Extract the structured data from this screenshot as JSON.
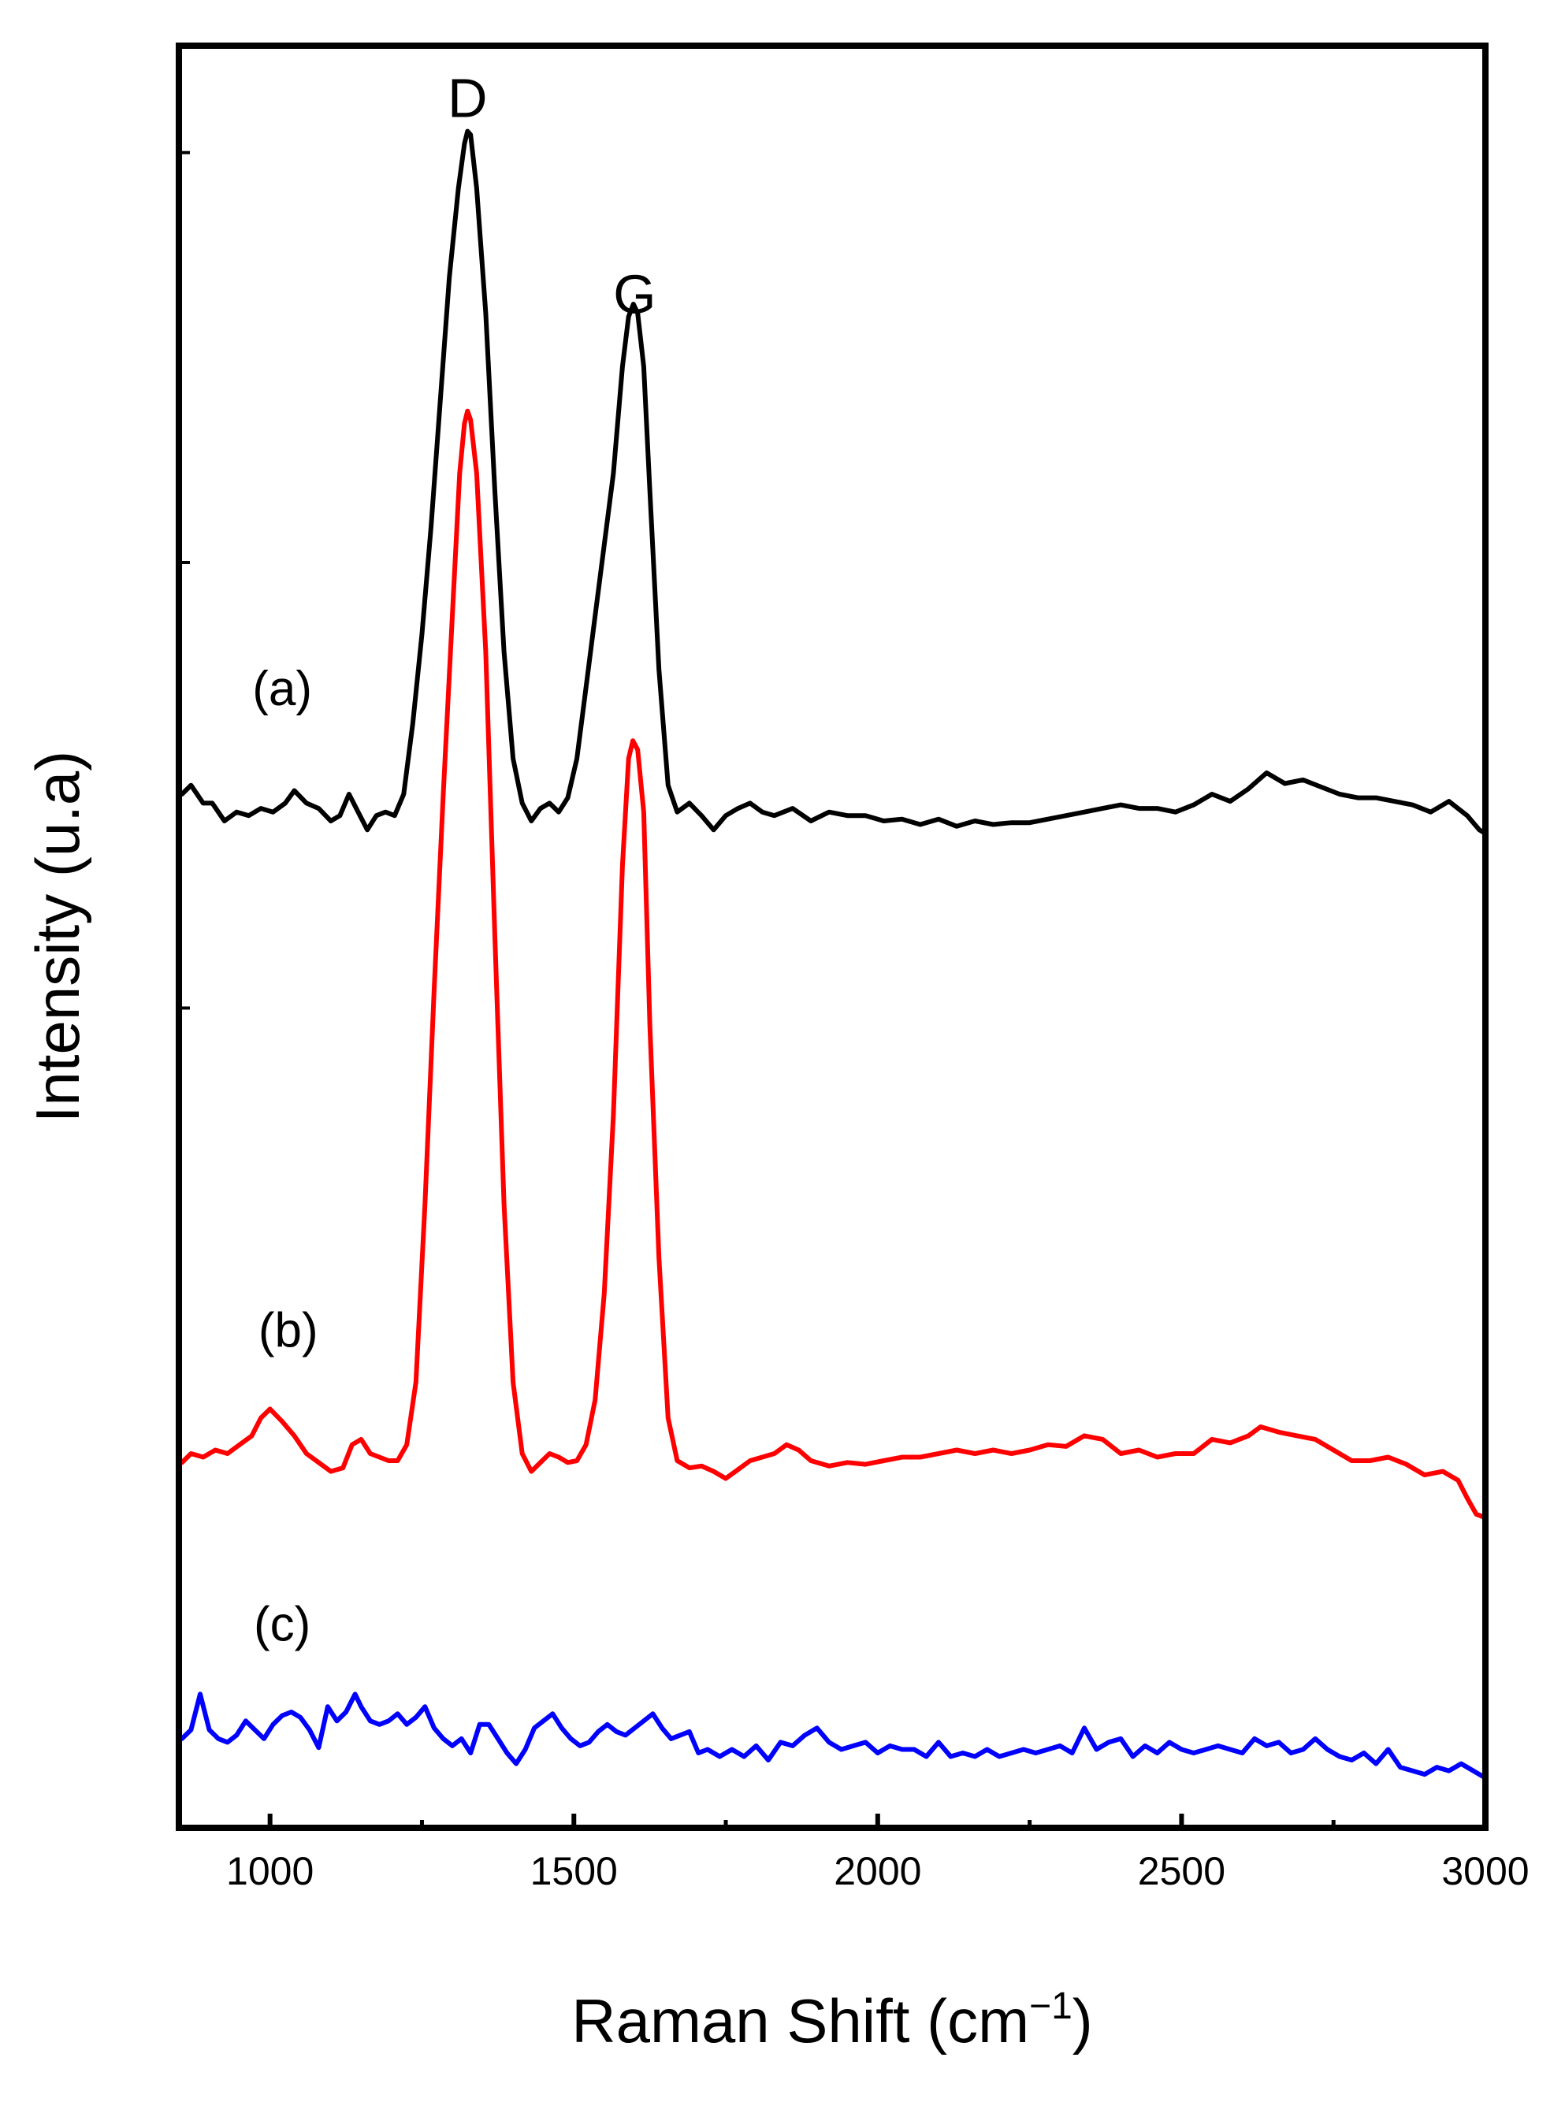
{
  "chart_data": {
    "type": "line",
    "xlabel": "Raman Shift (cm",
    "xlabel_sup": "−1",
    "xlabel_close": ")",
    "ylabel": "Intensity (u.a)",
    "xlim": [
      850,
      3000
    ],
    "ylim": [
      0,
      100
    ],
    "x_ticks": [
      1000,
      1500,
      2000,
      2500,
      3000
    ],
    "x_ticks_labels": [
      "1000",
      "1500",
      "2000",
      "2500",
      "3000"
    ],
    "x_minor_ticks": [
      1250,
      1750,
      2250,
      2750
    ],
    "y_ticks": [
      46,
      71,
      94
    ],
    "y_tick_labels_shown": false,
    "grid": false,
    "legend": "none",
    "annotations": [
      {
        "text": "D",
        "x": 1325,
        "y": 96
      },
      {
        "text": "G",
        "x": 1600,
        "y": 85
      },
      {
        "text": "(a)",
        "x": 1020,
        "y": 63
      },
      {
        "text": "(b)",
        "x": 1030,
        "y": 27
      },
      {
        "text": "(c)",
        "x": 1020,
        "y": 10.5
      }
    ],
    "series": [
      {
        "label": "(a)",
        "color": "#000000",
        "x": [
          855,
          870,
          890,
          905,
          925,
          945,
          965,
          985,
          1005,
          1025,
          1040,
          1060,
          1080,
          1100,
          1115,
          1130,
          1145,
          1160,
          1175,
          1190,
          1205,
          1220,
          1235,
          1250,
          1265,
          1280,
          1295,
          1310,
          1320,
          1325,
          1330,
          1340,
          1355,
          1370,
          1385,
          1400,
          1415,
          1430,
          1445,
          1460,
          1475,
          1490,
          1505,
          1520,
          1535,
          1550,
          1565,
          1580,
          1590,
          1598,
          1605,
          1615,
          1625,
          1640,
          1655,
          1670,
          1690,
          1710,
          1730,
          1750,
          1770,
          1790,
          1810,
          1830,
          1860,
          1890,
          1920,
          1950,
          1980,
          2010,
          2040,
          2070,
          2100,
          2130,
          2160,
          2190,
          2220,
          2250,
          2280,
          2310,
          2340,
          2370,
          2400,
          2430,
          2460,
          2490,
          2520,
          2550,
          2580,
          2610,
          2640,
          2670,
          2700,
          2730,
          2760,
          2790,
          2820,
          2850,
          2880,
          2910,
          2940,
          2970,
          2990,
          3000
        ],
        "y": [
          58.0,
          58.5,
          57.5,
          57.5,
          56.5,
          57.0,
          56.8,
          57.2,
          57.0,
          57.5,
          58.2,
          57.5,
          57.2,
          56.5,
          56.8,
          58.0,
          57.0,
          56.0,
          56.8,
          57.0,
          56.8,
          58.0,
          62.0,
          67.0,
          73.0,
          80.0,
          87.0,
          92.0,
          94.5,
          95.2,
          95.0,
          92.0,
          85.0,
          75.0,
          66.0,
          60.0,
          57.5,
          56.5,
          57.2,
          57.5,
          57.0,
          57.8,
          60.0,
          64.0,
          68.0,
          72.0,
          76.0,
          82.0,
          84.8,
          85.5,
          85.0,
          82.0,
          75.0,
          65.0,
          58.5,
          57.0,
          57.5,
          56.8,
          56.0,
          56.8,
          57.2,
          57.5,
          57.0,
          56.8,
          57.2,
          56.5,
          57.0,
          56.8,
          56.8,
          56.5,
          56.6,
          56.3,
          56.6,
          56.2,
          56.5,
          56.3,
          56.4,
          56.4,
          56.6,
          56.8,
          57.0,
          57.2,
          57.4,
          57.2,
          57.2,
          57.0,
          57.4,
          58.0,
          57.6,
          58.3,
          59.2,
          58.6,
          58.8,
          58.4,
          58.0,
          57.8,
          57.8,
          57.6,
          57.4,
          57.0,
          57.6,
          56.8,
          56.0,
          55.8
        ]
      },
      {
        "label": "(b)",
        "color": "#ff0000",
        "x": [
          855,
          870,
          890,
          910,
          930,
          950,
          970,
          985,
          1000,
          1020,
          1040,
          1060,
          1080,
          1100,
          1120,
          1135,
          1150,
          1165,
          1180,
          1195,
          1210,
          1225,
          1240,
          1255,
          1270,
          1285,
          1300,
          1312,
          1320,
          1325,
          1330,
          1340,
          1355,
          1370,
          1385,
          1400,
          1415,
          1430,
          1445,
          1460,
          1475,
          1490,
          1505,
          1520,
          1535,
          1550,
          1565,
          1580,
          1590,
          1597,
          1605,
          1615,
          1625,
          1640,
          1655,
          1670,
          1690,
          1710,
          1730,
          1750,
          1770,
          1790,
          1810,
          1830,
          1850,
          1870,
          1890,
          1920,
          1950,
          1980,
          2010,
          2040,
          2070,
          2100,
          2130,
          2160,
          2190,
          2220,
          2250,
          2280,
          2310,
          2340,
          2370,
          2400,
          2430,
          2460,
          2490,
          2520,
          2550,
          2580,
          2610,
          2630,
          2660,
          2690,
          2720,
          2750,
          2780,
          2810,
          2840,
          2870,
          2900,
          2930,
          2955,
          2970,
          2985,
          3000
        ],
        "y": [
          20.5,
          21.0,
          20.8,
          21.2,
          21.0,
          21.5,
          22.0,
          23.0,
          23.5,
          22.8,
          22.0,
          21.0,
          20.5,
          20.0,
          20.2,
          21.5,
          21.8,
          21.0,
          20.8,
          20.6,
          20.6,
          21.5,
          25.0,
          35.0,
          47.0,
          58.0,
          68.0,
          76.0,
          78.8,
          79.5,
          79.0,
          76.0,
          66.0,
          50.0,
          35.0,
          25.0,
          21.0,
          20.0,
          20.5,
          21.0,
          20.8,
          20.5,
          20.6,
          21.5,
          24.0,
          30.0,
          40.0,
          54.0,
          60.0,
          61.0,
          60.5,
          57.0,
          45.0,
          32.0,
          23.0,
          20.6,
          20.2,
          20.3,
          20.0,
          19.6,
          20.1,
          20.6,
          20.8,
          21.0,
          21.5,
          21.2,
          20.6,
          20.3,
          20.5,
          20.4,
          20.6,
          20.8,
          20.8,
          21.0,
          21.2,
          21.0,
          21.2,
          21.0,
          21.2,
          21.5,
          21.4,
          22.0,
          21.8,
          21.0,
          21.2,
          20.8,
          21.0,
          21.0,
          21.8,
          21.6,
          22.0,
          22.5,
          22.2,
          22.0,
          21.8,
          21.2,
          20.6,
          20.6,
          20.8,
          20.4,
          19.8,
          20.0,
          19.5,
          18.5,
          17.6,
          17.4
        ]
      },
      {
        "label": "(c)",
        "color": "#0000ff",
        "x": [
          855,
          870,
          885,
          900,
          915,
          930,
          945,
          960,
          975,
          990,
          1005,
          1020,
          1035,
          1050,
          1065,
          1080,
          1095,
          1110,
          1125,
          1140,
          1150,
          1165,
          1180,
          1195,
          1210,
          1225,
          1240,
          1255,
          1270,
          1285,
          1300,
          1315,
          1330,
          1345,
          1360,
          1375,
          1390,
          1405,
          1420,
          1435,
          1450,
          1465,
          1480,
          1495,
          1510,
          1525,
          1540,
          1555,
          1570,
          1585,
          1600,
          1615,
          1630,
          1645,
          1660,
          1675,
          1690,
          1705,
          1720,
          1740,
          1760,
          1780,
          1800,
          1820,
          1840,
          1860,
          1880,
          1900,
          1920,
          1940,
          1960,
          1980,
          2000,
          2020,
          2040,
          2060,
          2080,
          2100,
          2120,
          2140,
          2160,
          2180,
          2200,
          2220,
          2240,
          2260,
          2280,
          2300,
          2320,
          2340,
          2360,
          2380,
          2400,
          2420,
          2440,
          2460,
          2480,
          2500,
          2520,
          2540,
          2560,
          2580,
          2600,
          2620,
          2640,
          2660,
          2680,
          2700,
          2720,
          2740,
          2760,
          2780,
          2800,
          2820,
          2840,
          2860,
          2880,
          2900,
          2920,
          2940,
          2960,
          2980,
          3000
        ],
        "y": [
          5.0,
          5.5,
          7.5,
          5.5,
          5.0,
          4.8,
          5.2,
          6.0,
          5.5,
          5.0,
          5.8,
          6.3,
          6.5,
          6.2,
          5.5,
          4.5,
          6.8,
          6.0,
          6.5,
          7.5,
          6.8,
          6.0,
          5.8,
          6.0,
          6.4,
          5.8,
          6.2,
          6.8,
          5.6,
          5.0,
          4.6,
          5.0,
          4.2,
          5.8,
          5.8,
          5.0,
          4.2,
          3.6,
          4.4,
          5.6,
          6.0,
          6.4,
          5.6,
          5.0,
          4.6,
          4.8,
          5.4,
          5.8,
          5.4,
          5.2,
          5.6,
          6.0,
          6.4,
          5.6,
          5.0,
          5.2,
          5.4,
          4.2,
          4.4,
          4.0,
          4.4,
          4.0,
          4.6,
          3.8,
          4.8,
          4.6,
          5.2,
          5.6,
          4.8,
          4.4,
          4.6,
          4.8,
          4.2,
          4.6,
          4.4,
          4.4,
          4.0,
          4.8,
          4.0,
          4.2,
          4.0,
          4.4,
          4.0,
          4.2,
          4.4,
          4.2,
          4.4,
          4.6,
          4.2,
          5.6,
          4.4,
          4.8,
          5.0,
          4.0,
          4.6,
          4.2,
          4.8,
          4.4,
          4.2,
          4.4,
          4.6,
          4.4,
          4.2,
          5.0,
          4.6,
          4.8,
          4.2,
          4.4,
          5.0,
          4.4,
          4.0,
          3.8,
          4.2,
          3.6,
          4.4,
          3.4,
          3.2,
          3.0,
          3.4,
          3.2,
          3.6,
          3.2,
          2.8
        ]
      }
    ]
  }
}
